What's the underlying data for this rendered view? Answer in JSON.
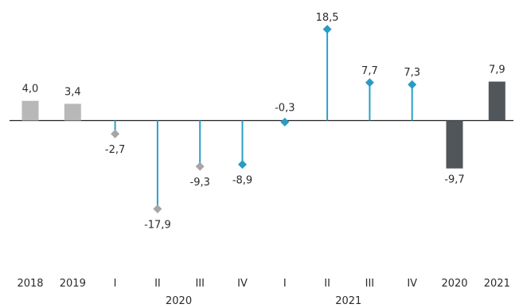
{
  "chart_data": {
    "type": "bar",
    "categories": [
      "2018",
      "2019",
      "I",
      "II",
      "III",
      "IV",
      "I",
      "II",
      "III",
      "IV",
      "2020",
      "2021"
    ],
    "groups": [
      {
        "label": "2020",
        "start": 2,
        "end": 5
      },
      {
        "label": "2021",
        "start": 6,
        "end": 9
      }
    ],
    "values": [
      4.0,
      3.4,
      -2.7,
      -17.9,
      -9.3,
      -8.9,
      -0.3,
      18.5,
      7.7,
      7.3,
      -9.7,
      7.9
    ],
    "value_labels": [
      "4,0",
      "3,4",
      "-2,7",
      "-17,9",
      "-9,3",
      "-8,9",
      "-0,3",
      "18,5",
      "7,7",
      "7,3",
      "-9,7",
      "7,9"
    ],
    "styles": [
      "bar",
      "bar",
      "lollipop",
      "lollipop",
      "lollipop",
      "lollipop",
      "lollipop",
      "lollipop",
      "lollipop",
      "lollipop",
      "bar",
      "bar"
    ],
    "colors": {
      "bar_historic": "#b8b8b8",
      "bar_forecast": "#505659",
      "stem": "#2aa0c8",
      "marker_historic": "#a6a6a6",
      "marker_forecast": "#2a9bc4",
      "axis": "#222222"
    },
    "color_keys": [
      "bar_historic",
      "bar_historic",
      "marker_historic",
      "marker_historic",
      "marker_historic",
      "marker_forecast",
      "marker_forecast",
      "marker_forecast",
      "marker_forecast",
      "marker_forecast",
      "bar_forecast",
      "bar_forecast"
    ],
    "grid": false,
    "legend": "none"
  }
}
